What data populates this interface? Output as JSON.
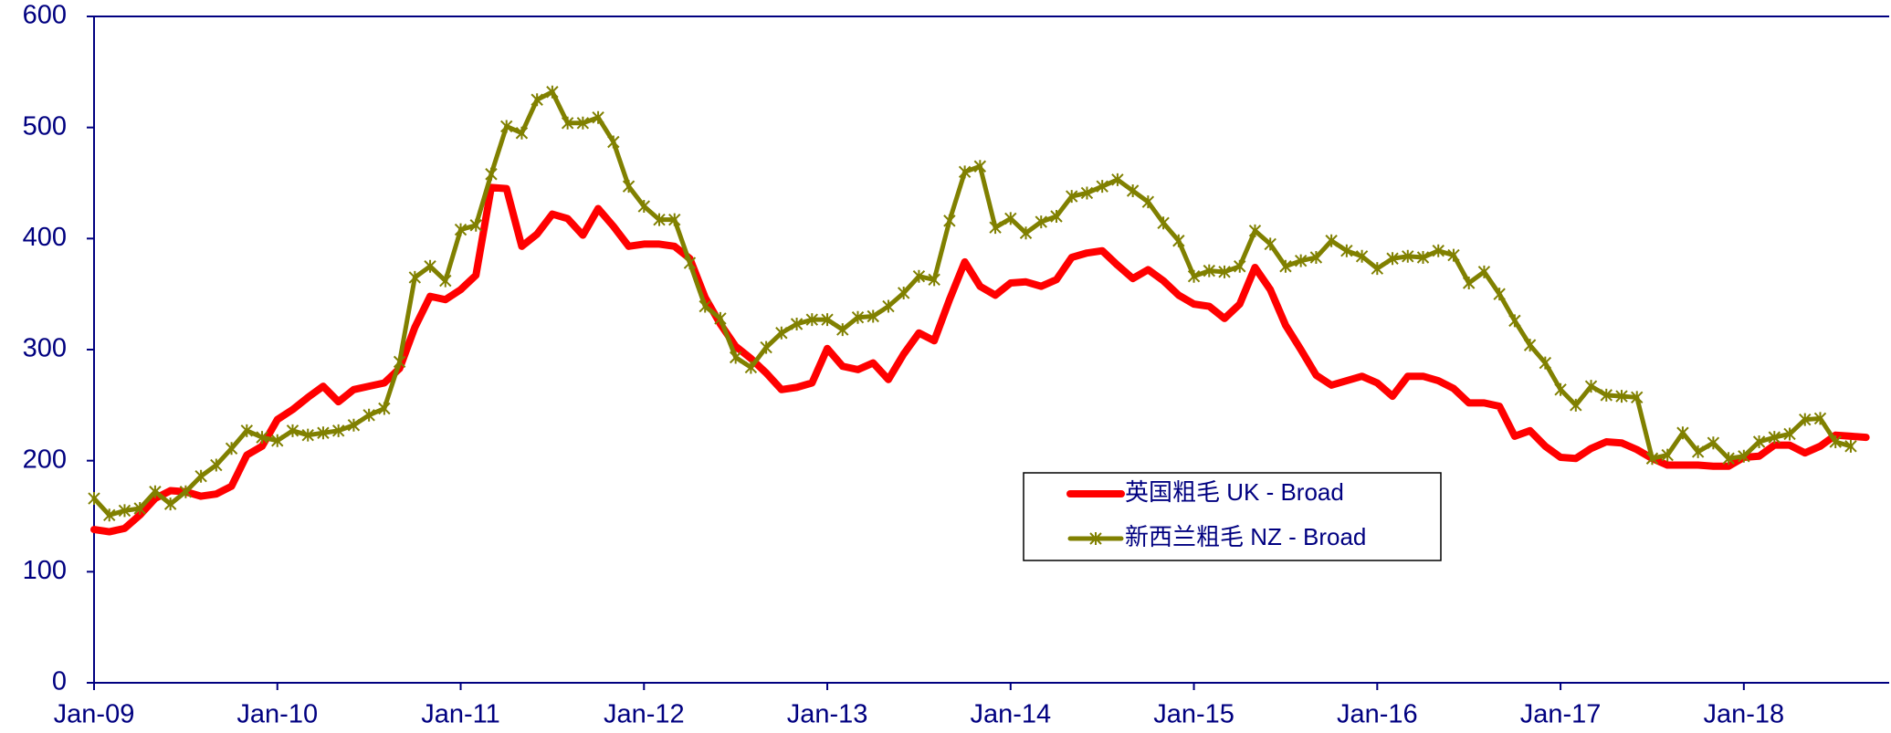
{
  "chart_data": {
    "type": "line",
    "categories": [
      "Jan-09",
      null,
      null,
      null,
      null,
      null,
      null,
      null,
      null,
      null,
      null,
      null,
      "Jan-10",
      null,
      null,
      null,
      null,
      null,
      null,
      null,
      null,
      null,
      null,
      null,
      "Jan-11",
      null,
      null,
      null,
      null,
      null,
      null,
      null,
      null,
      null,
      null,
      null,
      "Jan-12",
      null,
      null,
      null,
      null,
      null,
      null,
      null,
      null,
      null,
      null,
      null,
      "Jan-13",
      null,
      null,
      null,
      null,
      null,
      null,
      null,
      null,
      null,
      null,
      null,
      "Jan-14",
      null,
      null,
      null,
      null,
      null,
      null,
      null,
      null,
      null,
      null,
      null,
      "Jan-15",
      null,
      null,
      null,
      null,
      null,
      null,
      null,
      null,
      null,
      null,
      null,
      "Jan-16",
      null,
      null,
      null,
      null,
      null,
      null,
      null,
      null,
      null,
      null,
      null,
      "Jan-17",
      null,
      null,
      null,
      null,
      null,
      null,
      null,
      null,
      null,
      null,
      null,
      "Jan-18",
      null,
      null,
      null,
      null,
      null,
      null,
      null,
      null
    ],
    "series": [
      {
        "name": "英国粗毛 UK - Broad",
        "color": "#ff0000",
        "marker": false,
        "values": [
          138,
          136,
          139,
          151,
          166,
          173,
          172,
          168,
          170,
          177,
          205,
          213,
          237,
          246,
          257,
          267,
          253,
          264,
          267,
          270,
          283,
          320,
          348,
          345,
          354,
          367,
          446,
          445,
          393,
          404,
          422,
          418,
          403,
          427,
          411,
          393,
          395,
          395,
          393,
          382,
          347,
          323,
          303,
          292,
          279,
          264,
          266,
          270,
          301,
          285,
          282,
          288,
          273,
          296,
          315,
          308,
          345,
          379,
          357,
          349,
          360,
          361,
          357,
          363,
          383,
          387,
          389,
          376,
          364,
          372,
          362,
          349,
          341,
          339,
          328,
          341,
          374,
          354,
          322,
          300,
          277,
          268,
          272,
          276,
          270,
          258,
          276,
          276,
          272,
          265,
          252,
          252,
          249,
          222,
          227,
          213,
          203,
          202,
          211,
          217,
          216,
          210,
          202,
          196,
          196,
          196,
          195,
          195,
          203,
          204,
          214,
          214,
          207,
          213,
          223,
          222,
          221
        ]
      },
      {
        "name": "新西兰粗毛 NZ - Broad",
        "color": "#808000",
        "marker": true,
        "values": [
          166,
          151,
          155,
          157,
          172,
          161,
          172,
          186,
          196,
          211,
          227,
          221,
          218,
          227,
          223,
          225,
          227,
          232,
          241,
          247,
          289,
          365,
          375,
          362,
          408,
          412,
          458,
          501,
          495,
          525,
          532,
          504,
          504,
          509,
          487,
          447,
          429,
          417,
          417,
          378,
          339,
          328,
          293,
          284,
          302,
          315,
          323,
          327,
          327,
          318,
          329,
          330,
          339,
          351,
          366,
          363,
          416,
          460,
          465,
          410,
          418,
          405,
          415,
          420,
          438,
          441,
          447,
          453,
          443,
          433,
          414,
          398,
          366,
          371,
          370,
          375,
          407,
          395,
          375,
          380,
          383,
          398,
          389,
          384,
          373,
          382,
          384,
          383,
          389,
          385,
          360,
          370,
          350,
          326,
          304,
          288,
          264,
          250,
          267,
          259,
          258,
          257,
          202,
          205,
          225,
          208,
          216,
          202,
          204,
          217,
          221,
          224,
          237,
          238,
          217,
          213,
          null
        ]
      }
    ],
    "ylim": [
      0,
      600
    ],
    "yticks": [
      0,
      100,
      200,
      300,
      400,
      500,
      600
    ],
    "legend": "center"
  }
}
